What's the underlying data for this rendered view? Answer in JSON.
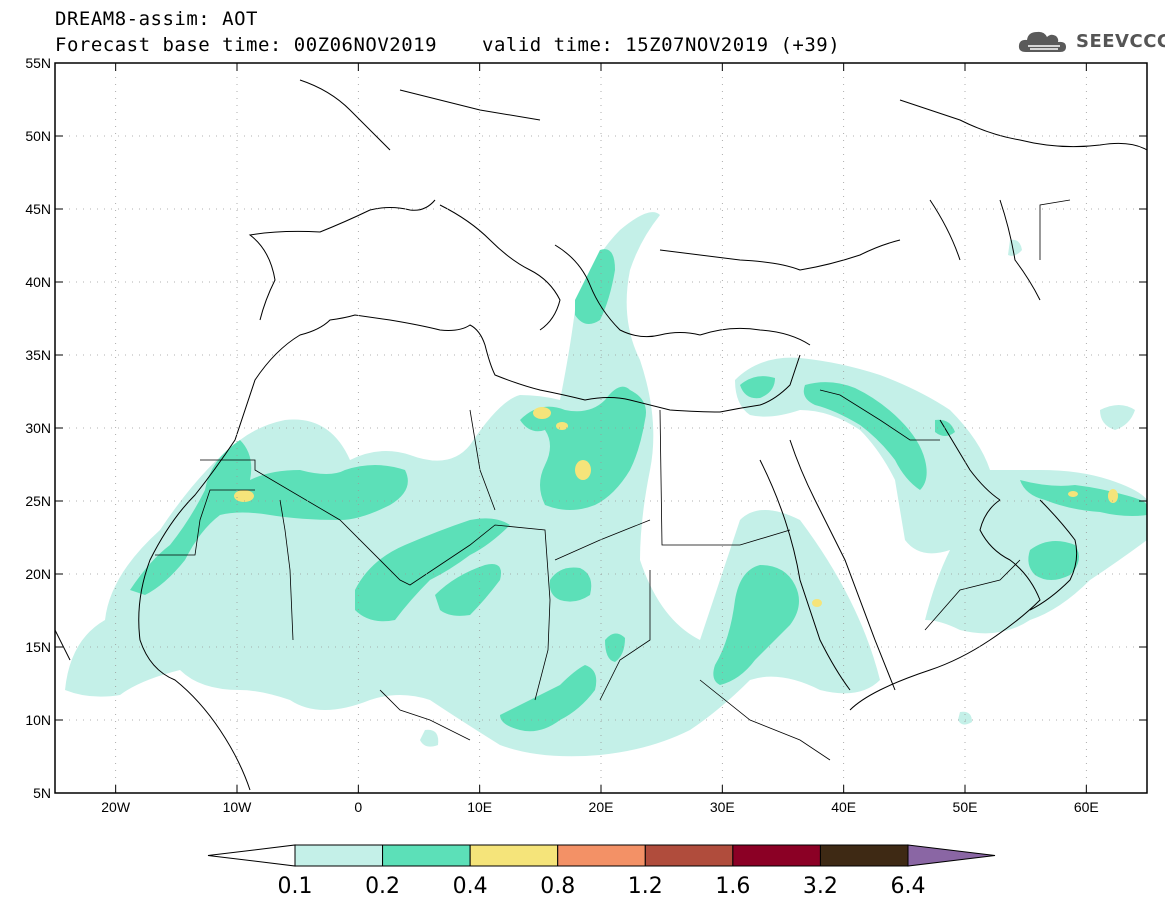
{
  "header": {
    "title_line1": "DREAM8-assim: AOT",
    "title_line2_left": "Forecast base time: 00Z06NOV2019",
    "title_line2_right": "valid time: 15Z07NOV2019 (+39)",
    "logo_text": "SEEVCCC",
    "logo_icon": "cloud-icon"
  },
  "map": {
    "lon_range": [
      -25,
      65
    ],
    "lat_range": [
      5,
      55
    ],
    "lat_ticks": [
      "55N",
      "50N",
      "45N",
      "40N",
      "35N",
      "30N",
      "25N",
      "20N",
      "15N",
      "10N",
      "5N"
    ],
    "lon_ticks": [
      "20W",
      "10W",
      "0",
      "10E",
      "20E",
      "30E",
      "40E",
      "50E",
      "60E"
    ]
  },
  "colorbar": {
    "levels": [
      "0.1",
      "0.2",
      "0.4",
      "0.8",
      "1.2",
      "1.6",
      "3.2",
      "6.4"
    ],
    "colors": [
      "#ffffff",
      "#c4f0e8",
      "#5ce0b8",
      "#f5e47a",
      "#f39166",
      "#b04c3c",
      "#8b0025",
      "#3e2914",
      "#8a66a4"
    ]
  }
}
